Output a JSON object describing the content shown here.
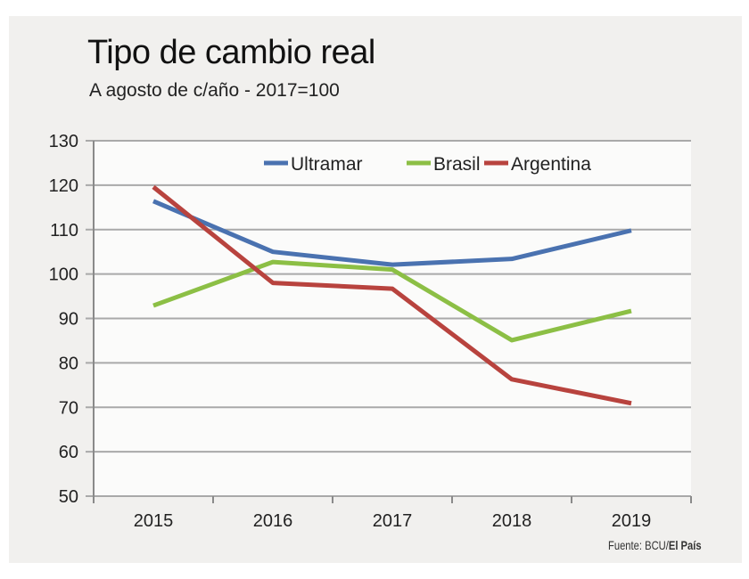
{
  "chart_data": {
    "type": "line",
    "title": "Tipo de cambio real",
    "subtitle": "A agosto de c/año  - 2017=100",
    "categories": [
      "2015",
      "2016",
      "2017",
      "2018",
      "2019"
    ],
    "series": [
      {
        "name": "Ultramar",
        "color": "#4a72b0",
        "values": [
          116.4,
          105,
          102.1,
          103.4,
          109.8
        ]
      },
      {
        "name": "Brasil",
        "color": "#8cbf45",
        "values": [
          92.9,
          102.7,
          101,
          85.1,
          91.7
        ]
      },
      {
        "name": "Argentina",
        "color": "#b8433e",
        "values": [
          119.6,
          98,
          96.7,
          76.3,
          70.9
        ]
      }
    ],
    "ylim": [
      50,
      130
    ],
    "yticks": [
      "50",
      "60",
      "70",
      "80",
      "90",
      "100",
      "110",
      "120",
      "130"
    ],
    "grid": true,
    "legend_position": "top-right",
    "source": {
      "prefix": "Fuente: BCU/",
      "bold": "El País"
    }
  }
}
